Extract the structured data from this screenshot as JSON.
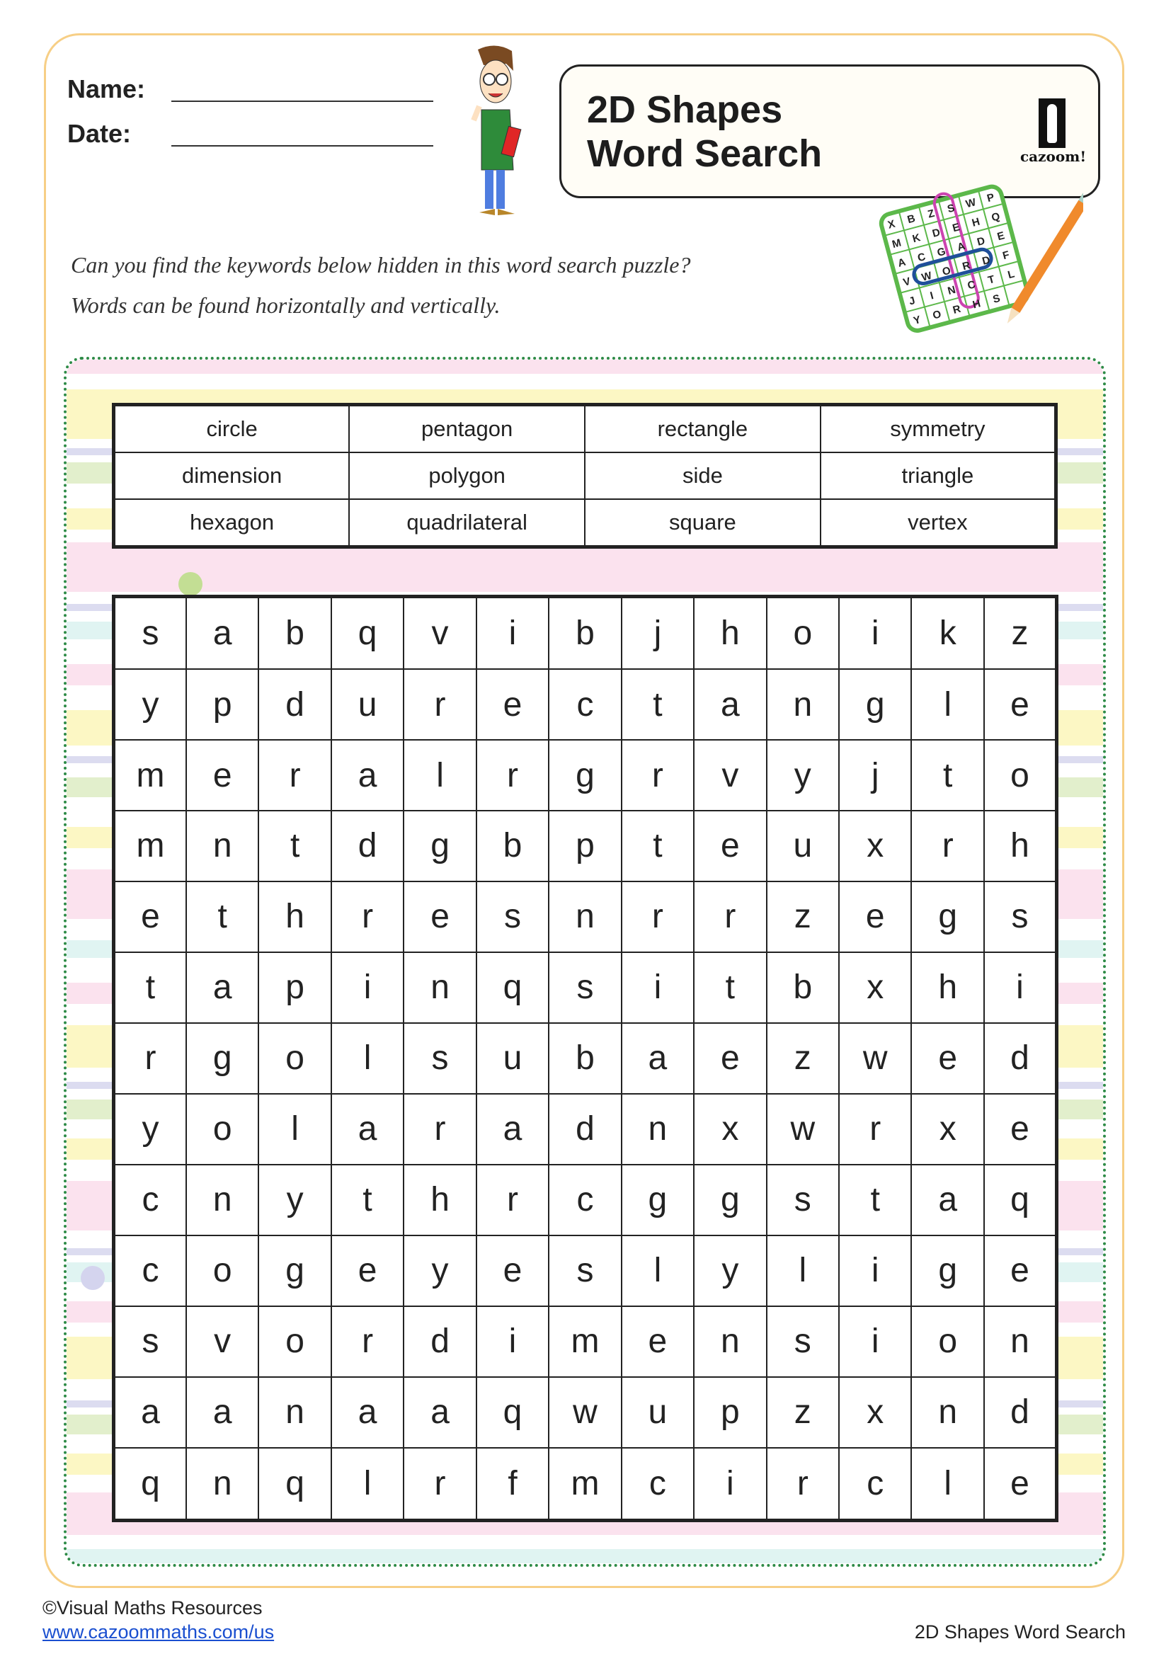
{
  "header": {
    "name_label": "Name:",
    "date_label": "Date:"
  },
  "title": {
    "line1": "2D Shapes",
    "line2": "Word Search",
    "logo_text": "cazoom!"
  },
  "instructions": [
    "Can you find the keywords below hidden in this word search puzzle?",
    "Words can be found horizontally and vertically."
  ],
  "word_list": [
    [
      "circle",
      "pentagon",
      "rectangle",
      "symmetry"
    ],
    [
      "dimension",
      "polygon",
      "side",
      "triangle"
    ],
    [
      "hexagon",
      "quadrilateral",
      "square",
      "vertex"
    ]
  ],
  "grid": [
    [
      "s",
      "a",
      "b",
      "q",
      "v",
      "i",
      "b",
      "j",
      "h",
      "o",
      "i",
      "k",
      "z"
    ],
    [
      "y",
      "p",
      "d",
      "u",
      "r",
      "e",
      "c",
      "t",
      "a",
      "n",
      "g",
      "l",
      "e"
    ],
    [
      "m",
      "e",
      "r",
      "a",
      "l",
      "r",
      "g",
      "r",
      "v",
      "y",
      "j",
      "t",
      "o"
    ],
    [
      "m",
      "n",
      "t",
      "d",
      "g",
      "b",
      "p",
      "t",
      "e",
      "u",
      "x",
      "r",
      "h"
    ],
    [
      "e",
      "t",
      "h",
      "r",
      "e",
      "s",
      "n",
      "r",
      "r",
      "z",
      "e",
      "g",
      "s"
    ],
    [
      "t",
      "a",
      "p",
      "i",
      "n",
      "q",
      "s",
      "i",
      "t",
      "b",
      "x",
      "h",
      "i"
    ],
    [
      "r",
      "g",
      "o",
      "l",
      "s",
      "u",
      "b",
      "a",
      "e",
      "z",
      "w",
      "e",
      "d"
    ],
    [
      "y",
      "o",
      "l",
      "a",
      "r",
      "a",
      "d",
      "n",
      "x",
      "w",
      "r",
      "x",
      "e"
    ],
    [
      "c",
      "n",
      "y",
      "t",
      "h",
      "r",
      "c",
      "g",
      "g",
      "s",
      "t",
      "a",
      "q"
    ],
    [
      "c",
      "o",
      "g",
      "e",
      "y",
      "e",
      "s",
      "l",
      "y",
      "l",
      "i",
      "g",
      "e"
    ],
    [
      "s",
      "v",
      "o",
      "r",
      "d",
      "i",
      "m",
      "e",
      "n",
      "s",
      "i",
      "o",
      "n"
    ],
    [
      "a",
      "a",
      "n",
      "a",
      "a",
      "q",
      "w",
      "u",
      "p",
      "z",
      "x",
      "n",
      "d"
    ],
    [
      "q",
      "n",
      "q",
      "l",
      "r",
      "f",
      "m",
      "c",
      "i",
      "r",
      "c",
      "l",
      "e"
    ]
  ],
  "mini_puzzle": {
    "letters": "XBZSWPMKDEHQACGADEVWORDFJINCTLYORHS"
  },
  "footer": {
    "copyright": "©Visual Maths Resources",
    "link": "www.cazoommaths.com/us",
    "worksheet_title": "2D Shapes Word Search"
  },
  "colors": {
    "border": "#f7cf86",
    "dotted": "#2e8b47",
    "link": "#1a4fd0"
  }
}
